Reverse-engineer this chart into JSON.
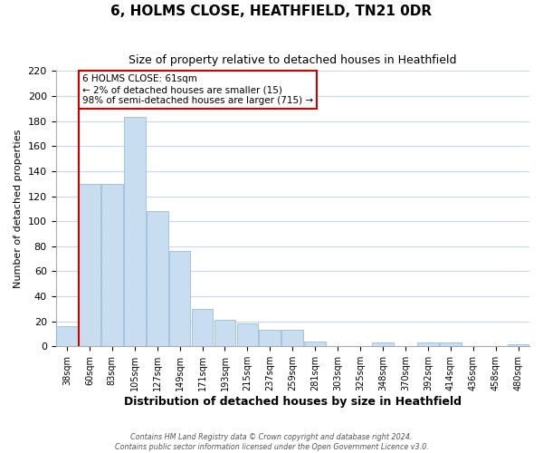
{
  "title": "6, HOLMS CLOSE, HEATHFIELD, TN21 0DR",
  "subtitle": "Size of property relative to detached houses in Heathfield",
  "xlabel": "Distribution of detached houses by size in Heathfield",
  "ylabel": "Number of detached properties",
  "bar_labels": [
    "38sqm",
    "60sqm",
    "83sqm",
    "105sqm",
    "127sqm",
    "149sqm",
    "171sqm",
    "193sqm",
    "215sqm",
    "237sqm",
    "259sqm",
    "281sqm",
    "303sqm",
    "325sqm",
    "348sqm",
    "370sqm",
    "392sqm",
    "414sqm",
    "436sqm",
    "458sqm",
    "480sqm"
  ],
  "bar_heights": [
    16,
    130,
    130,
    183,
    108,
    76,
    30,
    21,
    18,
    13,
    13,
    4,
    0,
    0,
    3,
    0,
    3,
    3,
    0,
    0,
    2
  ],
  "bar_color": "#c8ddef",
  "bar_edge_color": "#8ab4d4",
  "ylim": [
    0,
    220
  ],
  "yticks": [
    0,
    20,
    40,
    60,
    80,
    100,
    120,
    140,
    160,
    180,
    200,
    220
  ],
  "property_line_color": "#cc0000",
  "annotation_title": "6 HOLMS CLOSE: 61sqm",
  "annotation_line1": "← 2% of detached houses are smaller (15)",
  "annotation_line2": "98% of semi-detached houses are larger (715) →",
  "annotation_box_color": "#ffffff",
  "annotation_box_edge": "#cc0000",
  "footnote1": "Contains HM Land Registry data © Crown copyright and database right 2024.",
  "footnote2": "Contains public sector information licensed under the Open Government Licence v3.0.",
  "background_color": "#ffffff",
  "grid_color": "#c8d8e8"
}
